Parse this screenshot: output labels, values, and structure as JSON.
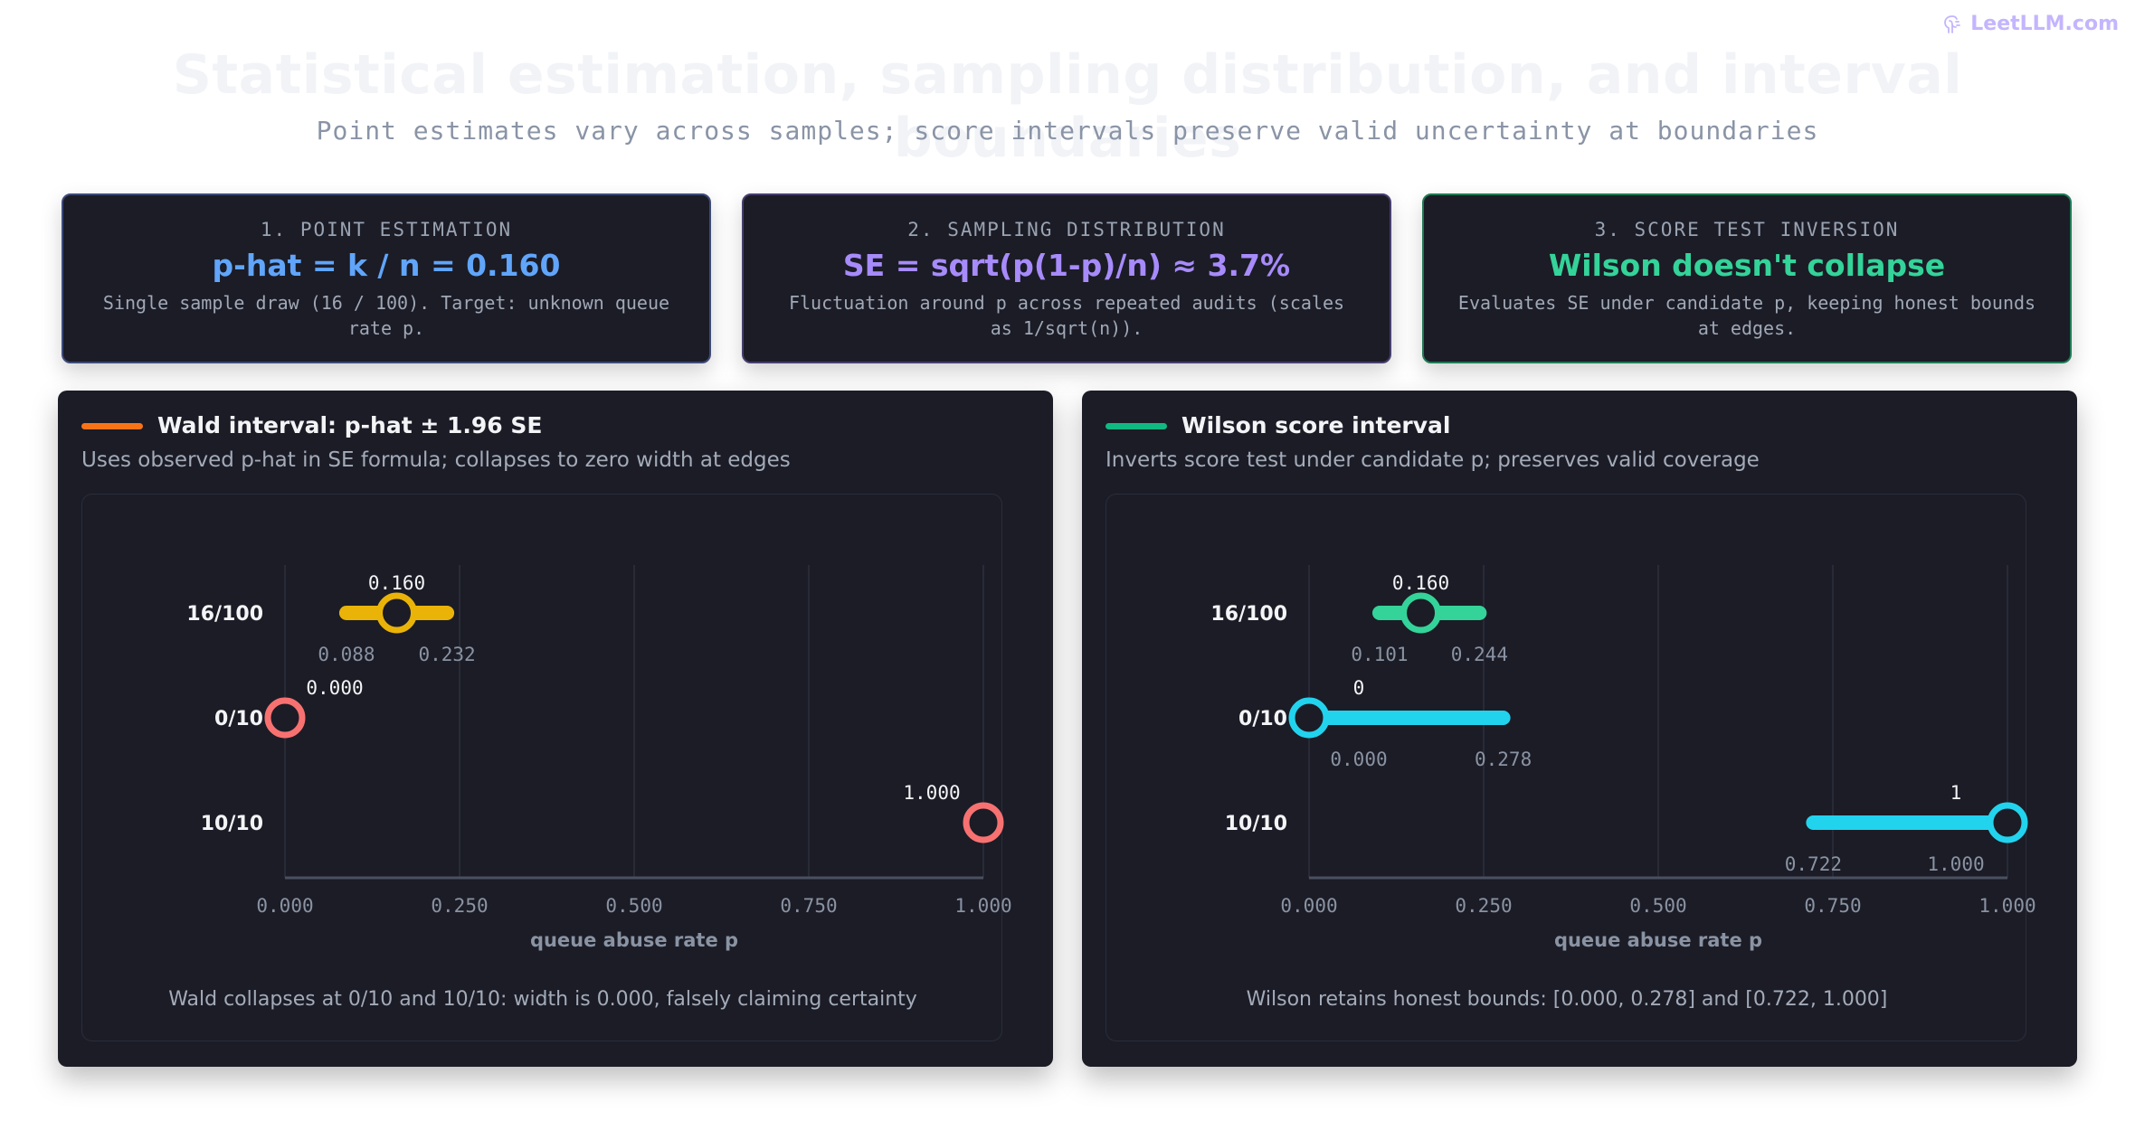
{
  "watermark": {
    "text": "LeetLLM.com",
    "icon": "brain-logo-icon",
    "color": "#c4b5fd"
  },
  "header": {
    "title": "Statistical estimation, sampling distribution, and interval boundaries",
    "subtitle": "Point estimates vary across samples; score intervals preserve valid uncertainty at boundaries"
  },
  "cards": [
    {
      "step": "1. POINT ESTIMATION",
      "headline": "p-hat = k / n = 0.160",
      "description": "Single sample draw (16 / 100). Target: unknown queue rate p.",
      "color": "#60a5fa"
    },
    {
      "step": "2. SAMPLING DISTRIBUTION",
      "headline": "SE = sqrt(p(1-p)/n) ≈ 3.7%",
      "description": "Fluctuation around p across repeated audits (scales as 1/sqrt(n)).",
      "color": "#a78bfa"
    },
    {
      "step": "3. SCORE TEST INVERSION",
      "headline": "Wilson doesn't collapse",
      "description": "Evaluates SE under candidate p, keeping honest bounds at edges.",
      "color": "#34d399"
    }
  ],
  "panels": {
    "wald": {
      "title": "Wald interval: p-hat ± 1.96 SE",
      "description": "Uses observed p-hat in SE formula; collapses to zero width at edges",
      "legend_color": "#f97316",
      "caption": "Wald collapses at 0/10 and 10/10: width is 0.000, falsely claiming certainty"
    },
    "wilson": {
      "title": "Wilson score interval",
      "description": "Inverts score test under candidate p; preserves valid coverage",
      "legend_color": "#10b981",
      "caption": "Wilson retains honest bounds: [0.000, 0.278] and [0.722, 1.000]"
    }
  },
  "chart_data": [
    {
      "type": "interval",
      "name": "wald",
      "xlabel": "queue abuse rate p",
      "xlim": [
        0,
        1
      ],
      "xticks": [
        "0.000",
        "0.250",
        "0.500",
        "0.750",
        "1.000"
      ],
      "grid": true,
      "rows": [
        {
          "label": "16/100",
          "estimate": 0.16,
          "estimate_label": "0.160",
          "lower": 0.088,
          "upper": 0.232,
          "lower_label": "0.088",
          "upper_label": "0.232",
          "bar_color": "#eab308",
          "marker_color": "#eab308"
        },
        {
          "label": "0/10",
          "estimate": 0.0,
          "estimate_label": "0.000",
          "lower": 0.0,
          "upper": 0.0,
          "lower_label": "",
          "upper_label": "",
          "bar_color": "#f87171",
          "marker_color": "#f87171"
        },
        {
          "label": "10/10",
          "estimate": 1.0,
          "estimate_label": "1.000",
          "lower": 1.0,
          "upper": 1.0,
          "lower_label": "",
          "upper_label": "",
          "bar_color": "#f87171",
          "marker_color": "#f87171"
        }
      ]
    },
    {
      "type": "interval",
      "name": "wilson",
      "xlabel": "queue abuse rate p",
      "xlim": [
        0,
        1
      ],
      "xticks": [
        "0.000",
        "0.250",
        "0.500",
        "0.750",
        "1.000"
      ],
      "grid": true,
      "rows": [
        {
          "label": "16/100",
          "estimate": 0.16,
          "estimate_label": "0.160",
          "lower": 0.101,
          "upper": 0.244,
          "lower_label": "0.101",
          "upper_label": "0.244",
          "bar_color": "#34d399",
          "marker_color": "#34d399"
        },
        {
          "label": "0/10",
          "estimate": 0.0,
          "estimate_label": "0",
          "lower": 0.0,
          "upper": 0.278,
          "lower_label": "0.000",
          "upper_label": "0.278",
          "bar_color": "#22d3ee",
          "marker_color": "#22d3ee"
        },
        {
          "label": "10/10",
          "estimate": 1.0,
          "estimate_label": "1",
          "lower": 0.722,
          "upper": 1.0,
          "lower_label": "0.722",
          "upper_label": "1.000",
          "bar_color": "#22d3ee",
          "marker_color": "#22d3ee"
        }
      ]
    }
  ]
}
